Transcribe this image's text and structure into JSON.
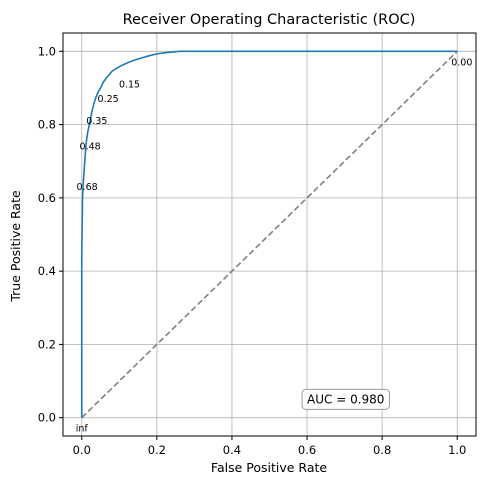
{
  "chart_data": {
    "type": "line",
    "title": "Receiver Operating Characteristic (ROC)",
    "xlabel": "False Positive Rate",
    "ylabel": "True Positive Rate",
    "xlim": [
      -0.05,
      1.05
    ],
    "ylim": [
      -0.05,
      1.05
    ],
    "xticks": [
      0.0,
      0.2,
      0.4,
      0.6,
      0.8,
      1.0
    ],
    "yticks": [
      0.0,
      0.2,
      0.4,
      0.6,
      0.8,
      1.0
    ],
    "xtick_labels": [
      "0.0",
      "0.2",
      "0.4",
      "0.6",
      "0.8",
      "1.0"
    ],
    "ytick_labels": [
      "0.0",
      "0.2",
      "0.4",
      "0.6",
      "0.8",
      "1.0"
    ],
    "grid": true,
    "series": [
      {
        "color": "#1f77b4",
        "style": "solid",
        "x": [
          0.0,
          0.0,
          0.002,
          0.004,
          0.006,
          0.008,
          0.01,
          0.013,
          0.016,
          0.02,
          0.024,
          0.028,
          0.033,
          0.038,
          0.044,
          0.05,
          0.057,
          0.064,
          0.072,
          0.08,
          0.09,
          0.1,
          0.112,
          0.125,
          0.14,
          0.16,
          0.18,
          0.2,
          0.22,
          0.24,
          0.262,
          0.3,
          0.5,
          0.8,
          1.0
        ],
        "y": [
          0.0,
          0.44,
          0.6,
          0.64,
          0.67,
          0.7,
          0.73,
          0.76,
          0.78,
          0.8,
          0.82,
          0.84,
          0.86,
          0.875,
          0.89,
          0.9,
          0.915,
          0.925,
          0.935,
          0.945,
          0.952,
          0.958,
          0.964,
          0.97,
          0.976,
          0.982,
          0.988,
          0.993,
          0.996,
          0.998,
          1.0,
          1.0,
          1.0,
          1.0,
          1.0
        ]
      },
      {
        "color": "#808080",
        "style": "dashed",
        "x": [
          0.0,
          1.0
        ],
        "y": [
          0.0,
          1.0
        ]
      }
    ],
    "threshold_labels": [
      {
        "text": "inf",
        "x": 0.0,
        "y": 0.0
      },
      {
        "text": "0.68",
        "x": 0.002,
        "y": 0.66
      },
      {
        "text": "0.48",
        "x": 0.01,
        "y": 0.77
      },
      {
        "text": "0.35",
        "x": 0.028,
        "y": 0.84
      },
      {
        "text": "0.25",
        "x": 0.058,
        "y": 0.9
      },
      {
        "text": "0.15",
        "x": 0.115,
        "y": 0.94
      },
      {
        "text": "0.00",
        "x": 1.0,
        "y": 1.0
      }
    ],
    "annotation": {
      "text": "AUC = 0.980",
      "x": 0.6,
      "y": 0.05
    }
  }
}
